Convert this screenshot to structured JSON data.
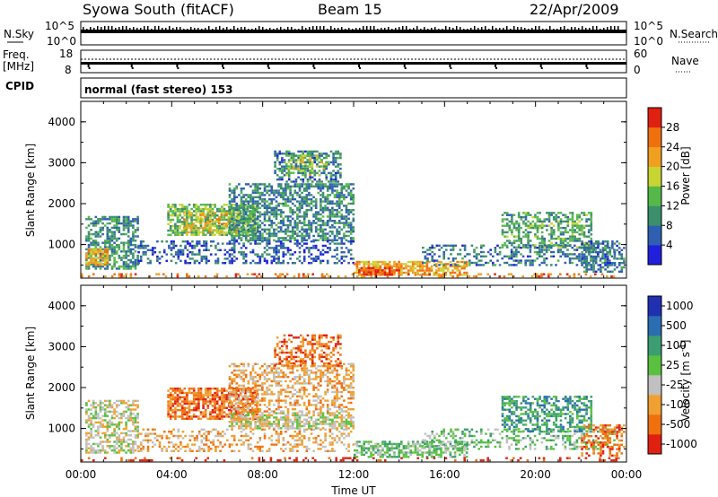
{
  "header": {
    "station": "Syowa South (fitACF)",
    "beam": "Beam 15",
    "date": "22/Apr/2009"
  },
  "noise_panel": {
    "left_label": "N.Sky",
    "right_label": "N.Search",
    "tick_top": "10^5",
    "tick_bottom": "10^0"
  },
  "freq_panel": {
    "left_label_1": "Freq.",
    "left_label_2": "[MHz]",
    "left_tick_top": "18",
    "left_tick_bottom": "8",
    "right_label": "Nave",
    "right_tick_top": "60",
    "right_tick_bottom": "0"
  },
  "cpid_panel": {
    "label": "CPID",
    "value": "normal (fast stereo) 153"
  },
  "colors": {
    "power_scale": [
      "#1f1fdc",
      "#2f5fb0",
      "#3c8f6c",
      "#57b84a",
      "#c8d430",
      "#f0a020",
      "#f07010",
      "#e02010"
    ],
    "velocity_scale": [
      "#2030b0",
      "#2a6db0",
      "#3a9e70",
      "#59c040",
      "#c0c0c0",
      "#f0a030",
      "#f07010",
      "#e02010"
    ]
  },
  "chart_data": [
    {
      "type": "heatmap",
      "name": "power",
      "ylabel": "Slant Range [km]",
      "yticks": [
        "1000",
        "2000",
        "3000",
        "4000"
      ],
      "ylim": [
        180,
        4500
      ],
      "xlim": [
        0,
        24
      ],
      "colorbar_label": "Power [dB]",
      "colorbar_ticks": [
        "4",
        "8",
        "12",
        "16",
        "20",
        "24",
        "28"
      ],
      "colorbar_range": [
        0,
        32
      ],
      "regions": [
        {
          "x0": 0.2,
          "x1": 2.6,
          "y0": 400,
          "y1": 1700,
          "value": 10,
          "density": 0.6
        },
        {
          "x0": 0.2,
          "x1": 1.2,
          "y0": 500,
          "y1": 900,
          "value": 22,
          "density": 0.7
        },
        {
          "x0": 3.8,
          "x1": 7.8,
          "y0": 1200,
          "y1": 2000,
          "value": 14,
          "density": 0.7
        },
        {
          "x0": 4.5,
          "x1": 7.0,
          "y0": 1300,
          "y1": 1800,
          "value": 20,
          "density": 0.5
        },
        {
          "x0": 6.5,
          "x1": 12.0,
          "y0": 1100,
          "y1": 2500,
          "value": 9,
          "density": 0.6
        },
        {
          "x0": 8.5,
          "x1": 11.5,
          "y0": 2500,
          "y1": 3300,
          "value": 8,
          "density": 0.5
        },
        {
          "x0": 9.0,
          "x1": 11.0,
          "y0": 2700,
          "y1": 3200,
          "value": 16,
          "density": 0.4
        },
        {
          "x0": 2.5,
          "x1": 12.0,
          "y0": 500,
          "y1": 1100,
          "value": 6,
          "density": 0.35
        },
        {
          "x0": 12.0,
          "x1": 17.0,
          "y0": 250,
          "y1": 600,
          "value": 22,
          "density": 0.7
        },
        {
          "x0": 12.2,
          "x1": 14.0,
          "y0": 250,
          "y1": 450,
          "value": 28,
          "density": 0.8
        },
        {
          "x0": 15.0,
          "x1": 23.5,
          "y0": 500,
          "y1": 1000,
          "value": 8,
          "density": 0.35
        },
        {
          "x0": 18.5,
          "x1": 22.5,
          "y0": 900,
          "y1": 1800,
          "value": 12,
          "density": 0.55
        },
        {
          "x0": 22.0,
          "x1": 24.0,
          "y0": 300,
          "y1": 1100,
          "value": 8,
          "density": 0.5
        },
        {
          "x0": 0.0,
          "x1": 24.0,
          "y0": 200,
          "y1": 300,
          "value": 25,
          "density": 0.25
        }
      ]
    },
    {
      "type": "heatmap",
      "name": "velocity",
      "ylabel": "Slant Range [km]",
      "yticks": [
        "1000",
        "2000",
        "3000",
        "4000"
      ],
      "ylim": [
        180,
        4500
      ],
      "xlim": [
        0,
        24
      ],
      "xticks": [
        "00:00",
        "04:00",
        "08:00",
        "12:00",
        "16:00",
        "20:00",
        "00:00"
      ],
      "xlabel": "Time UT",
      "colorbar_label": "Velocity [m s^-1]",
      "colorbar_ticks": [
        "1000",
        "500",
        "100",
        "25",
        "-25",
        "-100",
        "-500",
        "-1000"
      ],
      "regions": [
        {
          "x0": 0.2,
          "x1": 2.6,
          "y0": 400,
          "y1": 1700,
          "value": 4,
          "density": 0.55
        },
        {
          "x0": 3.8,
          "x1": 7.8,
          "y0": 1200,
          "y1": 2000,
          "value": 6,
          "density": 0.7
        },
        {
          "x0": 6.5,
          "x1": 12.0,
          "y0": 1000,
          "y1": 1400,
          "value": 4,
          "density": 0.7
        },
        {
          "x0": 6.5,
          "x1": 12.0,
          "y0": 1400,
          "y1": 2600,
          "value": 5,
          "density": 0.45
        },
        {
          "x0": 8.5,
          "x1": 11.5,
          "y0": 2500,
          "y1": 3300,
          "value": 6,
          "density": 0.45
        },
        {
          "x0": 2.5,
          "x1": 12.0,
          "y0": 400,
          "y1": 1000,
          "value": 5,
          "density": 0.3
        },
        {
          "x0": 12.0,
          "x1": 17.0,
          "y0": 300,
          "y1": 700,
          "value": 3,
          "density": 0.6
        },
        {
          "x0": 15.0,
          "x1": 23.5,
          "y0": 500,
          "y1": 1000,
          "value": 3,
          "density": 0.35
        },
        {
          "x0": 18.5,
          "x1": 22.5,
          "y0": 900,
          "y1": 1800,
          "value": 2,
          "density": 0.55
        },
        {
          "x0": 22.0,
          "x1": 24.0,
          "y0": 300,
          "y1": 1100,
          "value": 6,
          "density": 0.45
        },
        {
          "x0": 0.0,
          "x1": 24.0,
          "y0": 200,
          "y1": 300,
          "value": 7,
          "density": 0.2
        }
      ]
    }
  ]
}
